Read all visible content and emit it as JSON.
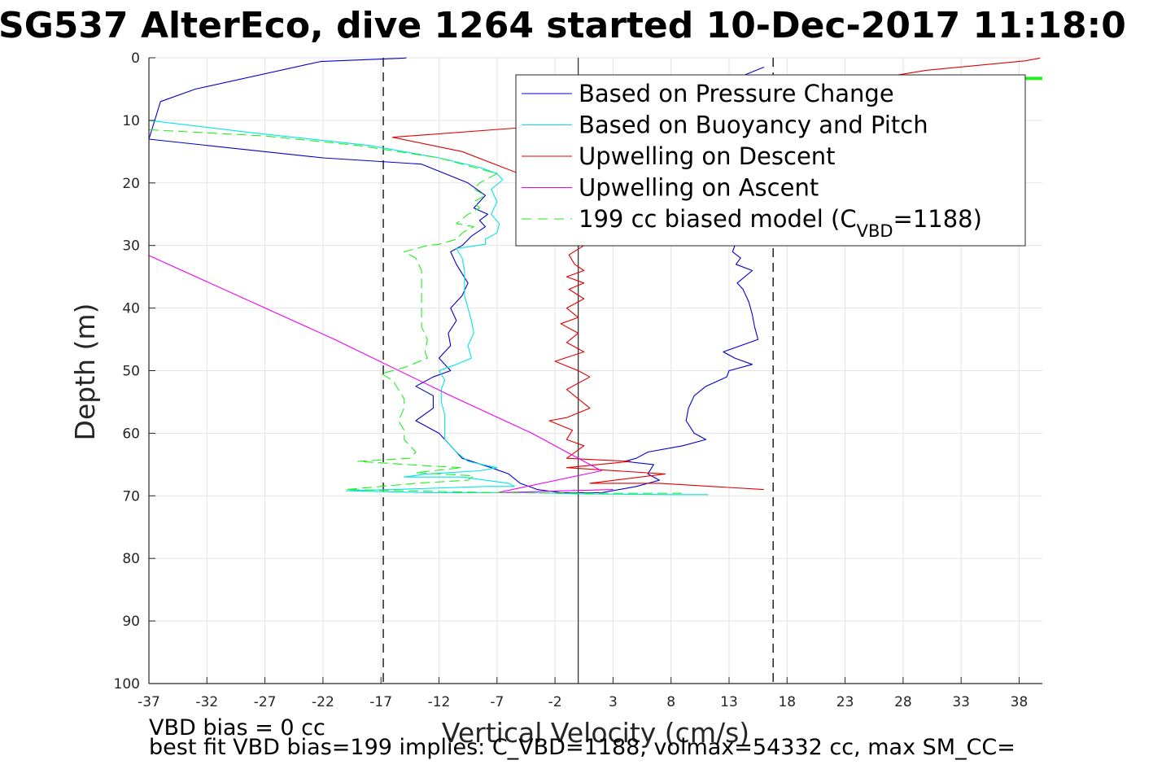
{
  "chart_data": {
    "type": "line",
    "title": "SG537 AlterEco, dive 1264 started 10-Dec-2017 11:18:0",
    "xlabel": "Vertical Velocity (cm/s)",
    "ylabel": "Depth (m)",
    "xlim": [
      -37,
      40
    ],
    "ylim": [
      100,
      0
    ],
    "y_reversed": true,
    "grid": true,
    "x_ticks": [
      -37,
      -32,
      -27,
      -22,
      -17,
      -12,
      -7,
      -2,
      3,
      8,
      13,
      18,
      23,
      28,
      33,
      38
    ],
    "y_ticks": [
      0,
      10,
      20,
      30,
      40,
      50,
      60,
      70,
      80,
      90,
      100
    ],
    "legend_position": "top-right",
    "legend": [
      {
        "series": "pressure",
        "label": "Based on Pressure Change",
        "color": "#0000cc",
        "dash": "solid"
      },
      {
        "series": "buoyancy",
        "label": "Based on Buoyancy and Pitch",
        "color": "#00e5e5",
        "dash": "solid"
      },
      {
        "series": "up_desc",
        "label": "Upwelling on Descent",
        "color": "#e00000",
        "dash": "solid"
      },
      {
        "series": "up_asc",
        "label": "Upwelling on Ascent",
        "color": "#ee00ee",
        "dash": "solid"
      },
      {
        "series": "model",
        "label_main": "199 cc biased model (C",
        "label_sub": "VBD",
        "label_tail": "=1188)",
        "color": "#22ee22",
        "dash": "long-dash"
      }
    ],
    "reference_lines": [
      {
        "axis": "x",
        "value": -16.8,
        "style": "dashed",
        "color": "#000000"
      },
      {
        "axis": "x",
        "value": 16.8,
        "style": "dashed",
        "color": "#000000"
      },
      {
        "axis": "x",
        "value": 0,
        "style": "solid",
        "color": "#333333"
      }
    ],
    "series": [
      {
        "id": "pressure",
        "color": "#0000cc",
        "points": [
          [
            -14.8,
            0
          ],
          [
            -15,
            0.05
          ],
          [
            -22.2,
            0.6
          ],
          [
            -33,
            5
          ],
          [
            -36,
            7
          ],
          [
            -37,
            13
          ],
          [
            -22,
            16
          ],
          [
            -13.5,
            17
          ],
          [
            -9.5,
            20
          ],
          [
            -8,
            22
          ],
          [
            -8.5,
            23
          ],
          [
            -9,
            24
          ],
          [
            -7.8,
            25
          ],
          [
            -8.5,
            26
          ],
          [
            -8,
            27
          ],
          [
            -9.2,
            28.5
          ],
          [
            -10,
            30
          ],
          [
            -11,
            31
          ],
          [
            -10.5,
            33
          ],
          [
            -9.5,
            36
          ],
          [
            -10,
            38
          ],
          [
            -11,
            40
          ],
          [
            -10.5,
            42
          ],
          [
            -11.2,
            44
          ],
          [
            -11,
            46
          ],
          [
            -12,
            48
          ],
          [
            -11,
            50
          ],
          [
            -12.5,
            51
          ],
          [
            -14,
            52.5
          ],
          [
            -12.5,
            54
          ],
          [
            -12.5,
            56
          ],
          [
            -14,
            58
          ],
          [
            -12,
            60
          ],
          [
            -11,
            62
          ],
          [
            -10,
            64
          ],
          [
            -7.5,
            65.5
          ],
          [
            -6,
            66.5
          ],
          [
            -5,
            68
          ],
          [
            -3.5,
            69
          ],
          [
            -1.5,
            69.5
          ],
          [
            2,
            69.5
          ],
          [
            5,
            68.5
          ],
          [
            7,
            67.5
          ],
          [
            6,
            66.5
          ],
          [
            6.5,
            65
          ],
          [
            4,
            64.5
          ],
          [
            5,
            64
          ],
          [
            6,
            63
          ],
          [
            9,
            62
          ],
          [
            11,
            61
          ],
          [
            10,
            60
          ],
          [
            9.3,
            58
          ],
          [
            9.5,
            56
          ],
          [
            10,
            54
          ],
          [
            11,
            52.5
          ],
          [
            12.8,
            51
          ],
          [
            13,
            50
          ],
          [
            15,
            49
          ],
          [
            13.5,
            48
          ],
          [
            12.5,
            47
          ],
          [
            15.5,
            45
          ],
          [
            15.2,
            43
          ],
          [
            15,
            41
          ],
          [
            14.7,
            39
          ],
          [
            14.2,
            37
          ],
          [
            13.7,
            36
          ],
          [
            15,
            34
          ],
          [
            13.6,
            33
          ],
          [
            14,
            32
          ],
          [
            13.3,
            31
          ],
          [
            13.5,
            30
          ],
          [
            13.3,
            28
          ],
          [
            12.5,
            25
          ],
          [
            12.5,
            22
          ],
          [
            13,
            20
          ],
          [
            13,
            18
          ],
          [
            13.5,
            15
          ],
          [
            13,
            12
          ],
          [
            12,
            9
          ],
          [
            12,
            5
          ],
          [
            14,
            3
          ],
          [
            16,
            1.5
          ]
        ]
      },
      {
        "id": "buoyancy",
        "color": "#00e5e5",
        "points": [
          [
            -37,
            10
          ],
          [
            -28,
            12
          ],
          [
            -18,
            14
          ],
          [
            -12,
            16
          ],
          [
            -8.5,
            17.5
          ],
          [
            -7,
            18.5
          ],
          [
            -6.5,
            19.5
          ],
          [
            -7.5,
            21
          ],
          [
            -7,
            23
          ],
          [
            -7.5,
            25
          ],
          [
            -6.8,
            26.5
          ],
          [
            -7,
            28
          ],
          [
            -8,
            29
          ],
          [
            -8,
            29.8
          ],
          [
            -10.5,
            30.5
          ],
          [
            -10,
            32
          ],
          [
            -9.8,
            34
          ],
          [
            -9.8,
            36
          ],
          [
            -9.8,
            38
          ],
          [
            -9.5,
            40
          ],
          [
            -9.2,
            42
          ],
          [
            -9,
            44
          ],
          [
            -9.5,
            46
          ],
          [
            -9.2,
            48
          ],
          [
            -10.5,
            49
          ],
          [
            -12,
            50
          ],
          [
            -11.5,
            51.5
          ],
          [
            -11.8,
            53
          ],
          [
            -11.8,
            55
          ],
          [
            -11.5,
            57
          ],
          [
            -11.5,
            59
          ],
          [
            -11.5,
            61
          ],
          [
            -10.5,
            63
          ],
          [
            -9.5,
            64.5
          ],
          [
            -7,
            65.5
          ],
          [
            -8.5,
            66
          ],
          [
            -13,
            66.5
          ],
          [
            -15,
            67
          ],
          [
            -10,
            67
          ],
          [
            -8,
            67.5
          ],
          [
            -6,
            68
          ],
          [
            -5.5,
            68.5
          ],
          [
            -8,
            68.5
          ],
          [
            -16,
            69
          ],
          [
            -20,
            69.2
          ],
          [
            -13,
            69.5
          ],
          [
            -4,
            69.5
          ],
          [
            0,
            69.7
          ],
          [
            8,
            69.8
          ],
          [
            11.2,
            69.8
          ]
        ]
      },
      {
        "id": "up_desc",
        "color": "#e00000",
        "points": [
          [
            39.8,
            0.05
          ],
          [
            38.5,
            0.5
          ],
          [
            30,
            2
          ],
          [
            20,
            5
          ],
          [
            10,
            8
          ],
          [
            0,
            10.5
          ],
          [
            -16,
            12.7
          ],
          [
            -10,
            15
          ],
          [
            -6.5,
            17.5
          ],
          [
            -3,
            20
          ],
          [
            -0.5,
            22
          ],
          [
            -1,
            24
          ],
          [
            0.8,
            26
          ],
          [
            -0.8,
            28
          ],
          [
            0.5,
            30
          ],
          [
            -0.8,
            31.5
          ],
          [
            -0.3,
            33
          ],
          [
            0.5,
            34
          ],
          [
            -1,
            35
          ],
          [
            0.5,
            36
          ],
          [
            -0.8,
            37
          ],
          [
            0.5,
            38.5
          ],
          [
            -1,
            40
          ],
          [
            0,
            41.5
          ],
          [
            -1.5,
            42.5
          ],
          [
            0,
            44
          ],
          [
            -1,
            45.5
          ],
          [
            0.5,
            47
          ],
          [
            -2,
            48.5
          ],
          [
            0,
            50
          ],
          [
            1,
            51
          ],
          [
            -1,
            53
          ],
          [
            0,
            54.5
          ],
          [
            1,
            56
          ],
          [
            -1,
            57.5
          ],
          [
            -2.5,
            58
          ],
          [
            -0.5,
            59.5
          ],
          [
            -1,
            61
          ],
          [
            0.5,
            62
          ],
          [
            -1,
            64
          ],
          [
            4.5,
            64.5
          ],
          [
            -1,
            65.5
          ],
          [
            7.5,
            66.5
          ],
          [
            1,
            68
          ],
          [
            7,
            68
          ],
          [
            16,
            69
          ]
        ]
      },
      {
        "id": "up_asc",
        "color": "#ee00ee",
        "points": [
          [
            -37,
            31.6
          ],
          [
            -21,
            45
          ],
          [
            -11,
            54
          ],
          [
            -4,
            60
          ],
          [
            2,
            66
          ],
          [
            -7,
            69.5
          ],
          [
            3,
            69
          ]
        ]
      },
      {
        "id": "model",
        "color": "#22ee22",
        "points": [
          [
            -37,
            11.5
          ],
          [
            -27,
            12.5
          ],
          [
            -19,
            14
          ],
          [
            -12,
            16
          ],
          [
            -9,
            17.5
          ],
          [
            -7,
            18.5
          ],
          [
            -8.5,
            20
          ],
          [
            -9,
            21
          ],
          [
            -8,
            22
          ],
          [
            -9,
            23
          ],
          [
            -8.5,
            24
          ],
          [
            -9.5,
            25
          ],
          [
            -10.5,
            26.5
          ],
          [
            -9,
            27
          ],
          [
            -10,
            28
          ],
          [
            -10.5,
            29
          ],
          [
            -12,
            29.8
          ],
          [
            -13,
            30
          ],
          [
            -15,
            31
          ],
          [
            -14,
            32
          ],
          [
            -13.5,
            34
          ],
          [
            -13.5,
            37
          ],
          [
            -13.5,
            40
          ],
          [
            -13.5,
            43
          ],
          [
            -13,
            45
          ],
          [
            -13.2,
            47
          ],
          [
            -13,
            48
          ],
          [
            -15,
            49.5
          ],
          [
            -17,
            50.5
          ],
          [
            -16,
            51.5
          ],
          [
            -15.5,
            53
          ],
          [
            -15,
            54.5
          ],
          [
            -15,
            56
          ],
          [
            -15.5,
            58
          ],
          [
            -15,
            59.5
          ],
          [
            -15,
            61
          ],
          [
            -14.5,
            62
          ],
          [
            -14,
            63
          ],
          [
            -14.5,
            64
          ],
          [
            -19,
            64.5
          ],
          [
            -13,
            65.2
          ],
          [
            -10,
            65.5
          ],
          [
            -14,
            66.3
          ],
          [
            -9,
            66.8
          ],
          [
            -9.5,
            67.5
          ],
          [
            -14,
            68
          ],
          [
            -20,
            69
          ],
          [
            -15,
            69.2
          ],
          [
            -7,
            69.5
          ],
          [
            2,
            69.6
          ],
          [
            9,
            69.6
          ]
        ]
      }
    ],
    "right_edge_marker": {
      "x": 40,
      "y": 3.3,
      "color": "#22ee22"
    }
  },
  "footer": {
    "line1": "VBD bias = 0 cc",
    "line2": "best fit VBD bias=199 implies: C_VBD=1188, volmax=54332 cc, max SM_CC="
  }
}
